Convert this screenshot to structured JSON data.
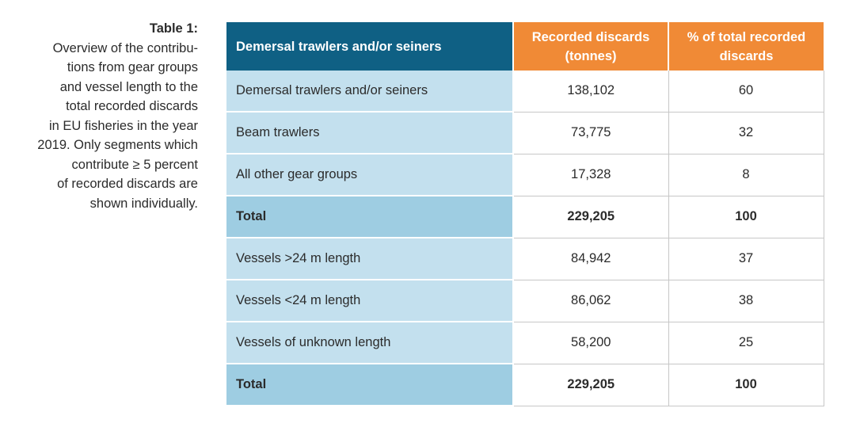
{
  "caption": {
    "title": "Table 1:",
    "lines": [
      "Overview of the contribu-",
      "tions from gear groups",
      "and vessel length to the",
      "total recorded discards",
      "in EU fisheries in the year",
      "2019. Only segments which",
      "contribute ≥ 5 percent",
      "of recorded discards are",
      "shown individually."
    ]
  },
  "table": {
    "headers": {
      "label": "Demersal trawlers and/or seiners",
      "discards_line1": "Recorded discards",
      "discards_line2": "(tonnes)",
      "percent_line1": "% of total recorded",
      "percent_line2": "discards"
    },
    "rows": [
      {
        "label": "Demersal trawlers and/or seiners",
        "discards": "138,102",
        "percent": "60"
      },
      {
        "label": "Beam trawlers",
        "discards": "73,775",
        "percent": "32"
      },
      {
        "label": "All other gear groups",
        "discards": "17,328",
        "percent": "8"
      },
      {
        "label": "Total",
        "discards": "229,205",
        "percent": "100"
      },
      {
        "label": "Vessels >24 m length",
        "discards": "84,942",
        "percent": "37"
      },
      {
        "label": "Vessels <24 m length",
        "discards": "86,062",
        "percent": "38"
      },
      {
        "label": "Vessels of unknown length",
        "discards": "58,200",
        "percent": "25"
      },
      {
        "label": "Total",
        "discards": "229,205",
        "percent": "100"
      }
    ]
  },
  "colors": {
    "header_label_bg": "#0f6084",
    "header_num_bg": "#f08a36",
    "row_label_bg": "#c3e0ee",
    "total_label_bg": "#9ecde2"
  }
}
